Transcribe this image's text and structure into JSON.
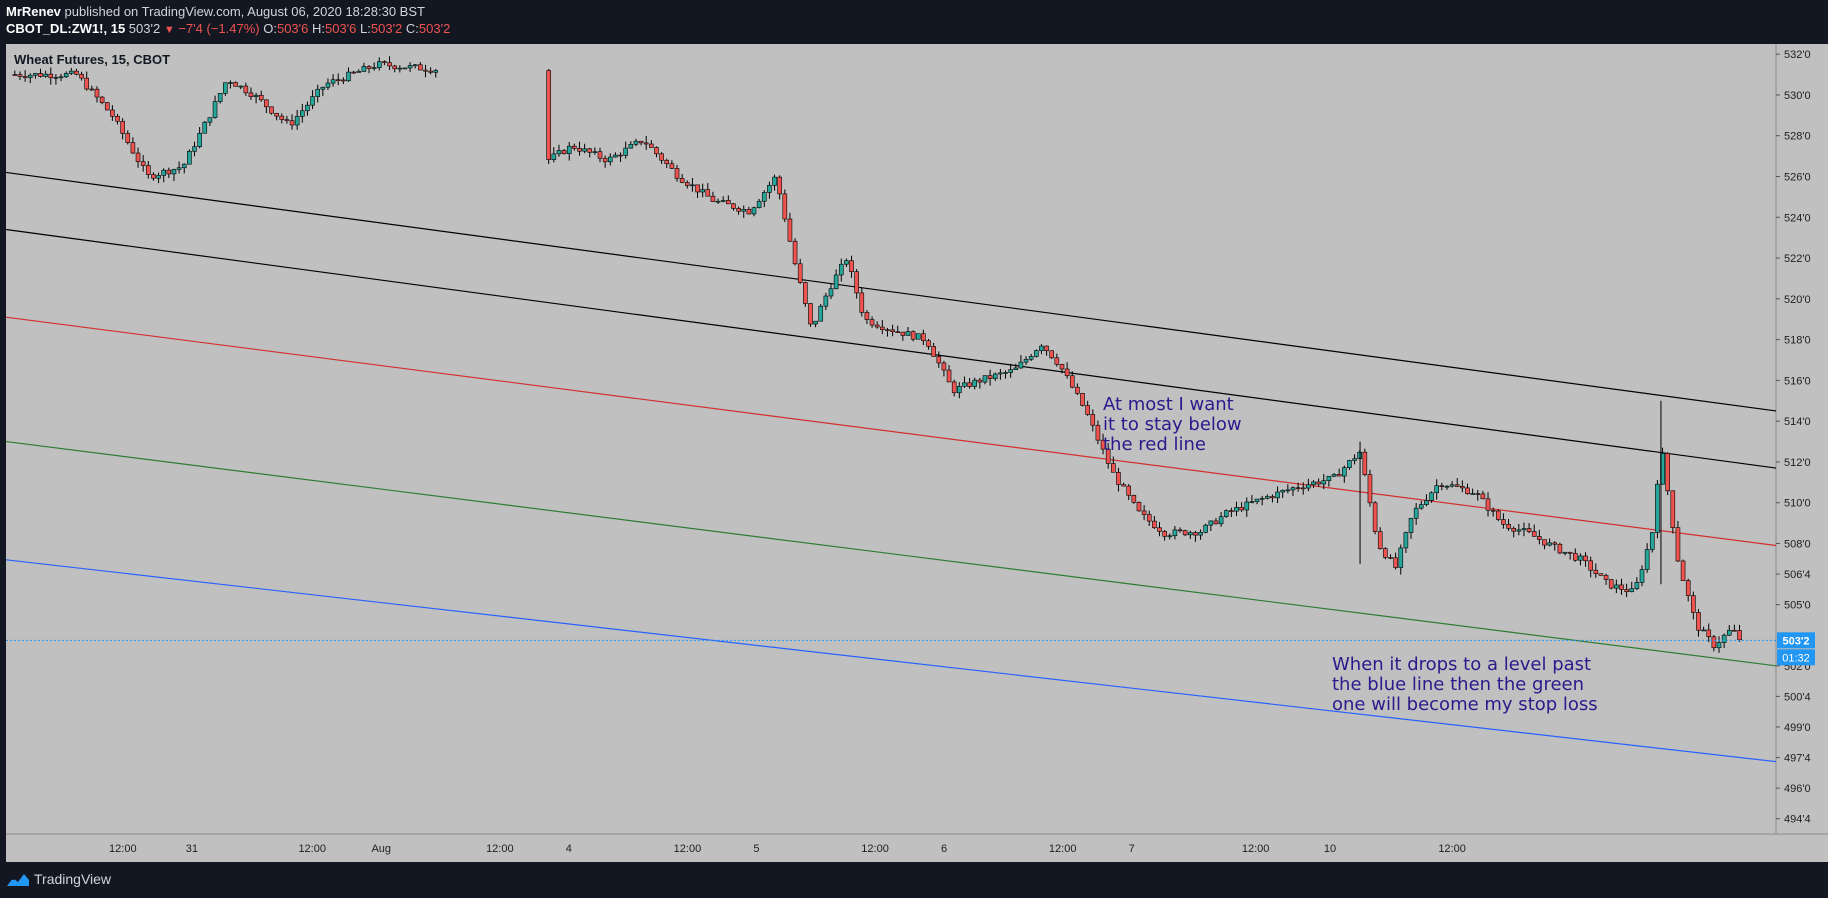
{
  "header": {
    "author": "MrRenev",
    "published_text": "published on TradingView.com, August 06, 2020 18:28:30 BST",
    "symbol": "CBOT_DL:ZW1!, 15",
    "last": "503'2",
    "change": "−7'4 (−1.47%)",
    "o_label": "O:",
    "o_value": "503'6",
    "h_label": "H:",
    "h_value": "503'6",
    "l_label": "L:",
    "l_value": "503'2",
    "c_label": "C:",
    "c_value": "503'2"
  },
  "legend": {
    "title": "Wheat Futures, 15, CBOT"
  },
  "footer": {
    "brand": "TradingView"
  },
  "colors": {
    "chart_bg": "#c0c0c0",
    "frame": "#131722",
    "up_candle": "#26a69a",
    "down_candle": "#ef5350",
    "red_line": "#d32f2f",
    "green_line": "#2e7d32",
    "blue_line": "#2962ff",
    "black_line": "#000000",
    "annotation_text": "#2a1a8c",
    "price_tag_bg": "#2196f3"
  },
  "annotations": [
    {
      "lines": [
        "At most I want",
        "it to stay below",
        "the red line"
      ]
    },
    {
      "lines": [
        "When it drops to a level past",
        "the blue line then the green",
        "one will become my stop loss"
      ]
    }
  ],
  "chart_data": {
    "type": "candlestick",
    "title": "Wheat Futures, 15, CBOT",
    "xlabel": "",
    "ylabel": "",
    "price_scale_labels": [
      "532'0",
      "530'0",
      "528'0",
      "526'0",
      "524'0",
      "522'0",
      "520'0",
      "518'0",
      "516'0",
      "514'0",
      "512'0",
      "510'0",
      "508'0",
      "506'4",
      "505'0",
      "502'0",
      "500'4",
      "499'0",
      "497'4",
      "496'0",
      "494'4"
    ],
    "price_scale_values": [
      532.0,
      530.0,
      528.0,
      526.0,
      524.0,
      522.0,
      520.0,
      518.0,
      516.0,
      514.0,
      512.0,
      510.0,
      508.0,
      506.5,
      505.0,
      502.0,
      500.5,
      499.0,
      497.5,
      496.0,
      494.5
    ],
    "ylim": [
      493.75,
      532.5
    ],
    "time_labels": [
      "12:00",
      "31",
      "12:00",
      "Aug",
      "12:00",
      "4",
      "12:00",
      "5",
      "12:00",
      "6",
      "12:00",
      "7",
      "12:00",
      "10",
      "12:00"
    ],
    "last_price": {
      "label": "503'2",
      "value": 503.25,
      "countdown": "01:32"
    },
    "trend_lines": [
      {
        "color": "black",
        "start": 526.2,
        "end": 514.5
      },
      {
        "color": "black",
        "start": 523.4,
        "end": 511.7
      },
      {
        "color": "red",
        "start": 519.1,
        "end": 507.9
      },
      {
        "color": "green",
        "start": 513.0,
        "end": 502.0
      },
      {
        "color": "blue",
        "start": 507.2,
        "end": 497.3
      }
    ],
    "price_path": [
      {
        "t": 0.0,
        "p": 531.0
      },
      {
        "t": 0.04,
        "p": 531.0
      },
      {
        "t": 0.06,
        "p": 529.0
      },
      {
        "t": 0.08,
        "p": 526.0
      },
      {
        "t": 0.1,
        "p": 526.5
      },
      {
        "t": 0.115,
        "p": 529.0
      },
      {
        "t": 0.125,
        "p": 530.8
      },
      {
        "t": 0.14,
        "p": 530.0
      },
      {
        "t": 0.16,
        "p": 528.5
      },
      {
        "t": 0.18,
        "p": 530.5
      },
      {
        "t": 0.21,
        "p": 531.5
      },
      {
        "t": 0.25,
        "p": 531.2
      },
      {
        "t": 0.27,
        "p": 530.0
      },
      {
        "t": 0.29,
        "p": 531.0
      },
      {
        "t": 0.3,
        "p": 526.5
      },
      {
        "t": 0.32,
        "p": 527.5
      },
      {
        "t": 0.34,
        "p": 526.8
      },
      {
        "t": 0.36,
        "p": 527.8
      },
      {
        "t": 0.38,
        "p": 526.0
      },
      {
        "t": 0.4,
        "p": 524.8
      },
      {
        "t": 0.42,
        "p": 524.3
      },
      {
        "t": 0.435,
        "p": 526.0
      },
      {
        "t": 0.445,
        "p": 522.0
      },
      {
        "t": 0.455,
        "p": 518.5
      },
      {
        "t": 0.465,
        "p": 520.5
      },
      {
        "t": 0.475,
        "p": 522.0
      },
      {
        "t": 0.485,
        "p": 519.0
      },
      {
        "t": 0.5,
        "p": 518.5
      },
      {
        "t": 0.52,
        "p": 518.0
      },
      {
        "t": 0.535,
        "p": 515.5
      },
      {
        "t": 0.55,
        "p": 516.0
      },
      {
        "t": 0.57,
        "p": 516.5
      },
      {
        "t": 0.585,
        "p": 517.8
      },
      {
        "t": 0.595,
        "p": 516.8
      },
      {
        "t": 0.61,
        "p": 514.5
      },
      {
        "t": 0.625,
        "p": 511.5
      },
      {
        "t": 0.64,
        "p": 509.5
      },
      {
        "t": 0.655,
        "p": 508.5
      },
      {
        "t": 0.675,
        "p": 508.6
      },
      {
        "t": 0.69,
        "p": 509.5
      },
      {
        "t": 0.71,
        "p": 510.2
      },
      {
        "t": 0.73,
        "p": 510.8
      },
      {
        "t": 0.75,
        "p": 511.2
      },
      {
        "t": 0.765,
        "p": 512.5
      },
      {
        "t": 0.775,
        "p": 508.0
      },
      {
        "t": 0.785,
        "p": 506.8
      },
      {
        "t": 0.795,
        "p": 509.5
      },
      {
        "t": 0.81,
        "p": 511.0
      },
      {
        "t": 0.83,
        "p": 510.5
      },
      {
        "t": 0.845,
        "p": 509.0
      },
      {
        "t": 0.86,
        "p": 508.5
      },
      {
        "t": 0.875,
        "p": 507.8
      },
      {
        "t": 0.89,
        "p": 507.2
      },
      {
        "t": 0.905,
        "p": 506.0
      },
      {
        "t": 0.92,
        "p": 505.6
      },
      {
        "t": 0.93,
        "p": 508.5
      },
      {
        "t": 0.935,
        "p": 512.8
      },
      {
        "t": 0.945,
        "p": 507.0
      },
      {
        "t": 0.955,
        "p": 504.0
      },
      {
        "t": 0.965,
        "p": 503.0
      },
      {
        "t": 0.975,
        "p": 503.8
      },
      {
        "t": 0.98,
        "p": 503.25
      }
    ]
  }
}
